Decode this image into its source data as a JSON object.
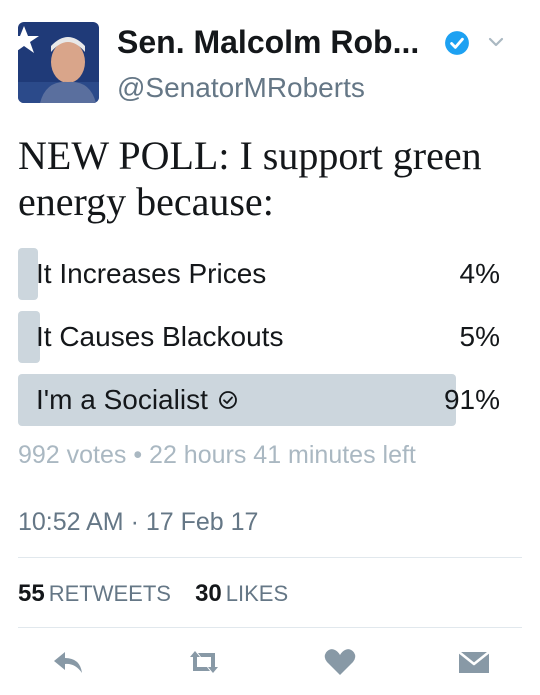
{
  "tweet": {
    "display_name": "Sen. Malcolm Rob...",
    "handle": "@SenatorMRoberts",
    "verified_icon": "verified-badge-icon",
    "text": "NEW POLL: I support green energy because:",
    "poll": {
      "options": [
        {
          "label": "It Increases Prices",
          "percent_text": "4%",
          "percent": 4,
          "selected": false
        },
        {
          "label": "It Causes Blackouts",
          "percent_text": "5%",
          "percent": 5,
          "selected": false
        },
        {
          "label": "I'm a Socialist",
          "percent_text": "91%",
          "percent": 91,
          "selected": true
        }
      ],
      "meta": "992 votes • 22 hours 41 minutes left"
    },
    "timestamp": "10:52 AM · 17 Feb 17",
    "stats": {
      "retweets_count": "55",
      "retweets_label": "RETWEETS",
      "likes_count": "30",
      "likes_label": "LIKES"
    }
  },
  "colors": {
    "verified_blue": "#1da1f2",
    "poll_bar": "#ccd6dd",
    "secondary_text": "#657786",
    "icon_gray": "#8899a6"
  }
}
